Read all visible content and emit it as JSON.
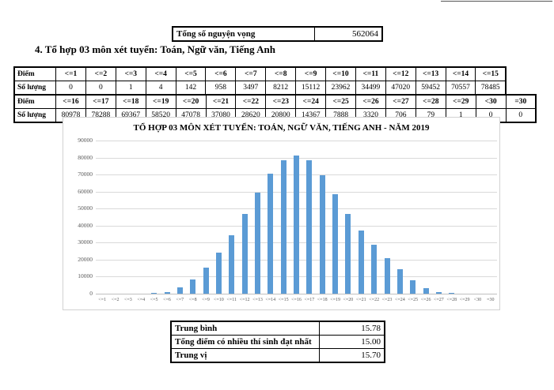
{
  "summary_table": {
    "label": "Tổng số nguyện vọng",
    "value": "562064"
  },
  "heading": "4. Tổ hợp 03 môn xét tuyển: Toán, Ngữ văn, Tiếng Anh",
  "score_table": {
    "row_header_score": "Điểm",
    "row_header_count": "Số lượng",
    "part1": {
      "headers": [
        "<=1",
        "<=2",
        "<=3",
        "<=4",
        "<=5",
        "<=6",
        "<=7",
        "<=8",
        "<=9",
        "<=10",
        "<=11",
        "<=12",
        "<=13",
        "<=14",
        "<=15"
      ],
      "values": [
        0,
        0,
        1,
        4,
        142,
        958,
        3497,
        8212,
        15112,
        23962,
        34499,
        47020,
        59452,
        70557,
        78485
      ]
    },
    "part2": {
      "headers": [
        "<=16",
        "<=17",
        "<=18",
        "<=19",
        "<=20",
        "<=21",
        "<=22",
        "<=23",
        "<=24",
        "<=25",
        "<=26",
        "<=27",
        "<=28",
        "<=29",
        "<30",
        "=30"
      ],
      "values": [
        80978,
        78288,
        69367,
        58520,
        47078,
        37080,
        28620,
        20800,
        14367,
        7888,
        3320,
        706,
        79,
        1,
        0,
        0
      ]
    }
  },
  "chart_data": {
    "type": "bar",
    "title": "TỔ HỢP 03 MÔN XÉT TUYỂN: TOÁN, NGỮ VĂN, TIẾNG ANH - NĂM 2019",
    "categories": [
      "<=1",
      "<=2",
      "<=3",
      "<=4",
      "<=5",
      "<=6",
      "<=7",
      "<=8",
      "<=9",
      "<=10",
      "<=11",
      "<=12",
      "<=13",
      "<=14",
      "<=15",
      "<=16",
      "<=17",
      "<=18",
      "<=19",
      "<=20",
      "<=21",
      "<=22",
      "<=23",
      "<=24",
      "<=25",
      "<=26",
      "<=27",
      "<=28",
      "<=29",
      "<30",
      "=30"
    ],
    "values": [
      0,
      0,
      1,
      4,
      142,
      958,
      3497,
      8212,
      15112,
      23962,
      34499,
      47020,
      59452,
      70557,
      78485,
      80978,
      78288,
      69367,
      58520,
      47078,
      37080,
      28620,
      20800,
      14367,
      7888,
      3320,
      706,
      79,
      1,
      0,
      0
    ],
    "xlabel": "",
    "ylabel": "",
    "ylim": [
      0,
      90000
    ],
    "ytick_step": 10000,
    "grid": true,
    "legend_position": "none",
    "bar_color": "#5B9BD5",
    "gridline_color": "#D9D9D9",
    "axis_line_color": "#BFBFBF",
    "axis_text_color": "#595959"
  },
  "stats_table": {
    "rows": [
      {
        "label": "Trung bình",
        "value": "15.78"
      },
      {
        "label": "Tổng điểm có nhiều thí sinh đạt nhất",
        "value": "15.00"
      },
      {
        "label": "Trung vị",
        "value": "15.70"
      }
    ]
  }
}
